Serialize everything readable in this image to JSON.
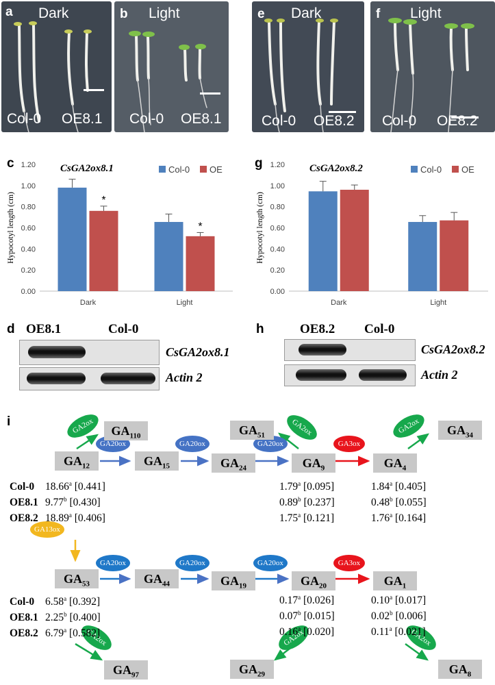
{
  "photos": [
    {
      "letter": "a",
      "condition": "Dark",
      "left": "Col-0",
      "right": "OE8.1"
    },
    {
      "letter": "b",
      "condition": "Light",
      "left": "Col-0",
      "right": "OE8.1"
    },
    {
      "letter": "e",
      "condition": "Dark",
      "left": "Col-0",
      "right": "OE8.2"
    },
    {
      "letter": "f",
      "condition": "Light",
      "left": "Col-0",
      "right": "OE8.2"
    }
  ],
  "chart_data": [
    {
      "type": "bar",
      "panel": "c",
      "title": "CsGA2ox8.1",
      "ylabel": "Hypocotyl length (cm)",
      "ylim": [
        0,
        1.2
      ],
      "yticks": [
        "0.00",
        "0.20",
        "0.40",
        "0.60",
        "0.80",
        "1.00",
        "1.20"
      ],
      "categories": [
        "Dark",
        "Light"
      ],
      "series": [
        {
          "name": "Col-0",
          "color": "#4f81bd",
          "values": [
            0.98,
            0.655
          ],
          "errors": [
            0.08,
            0.075
          ]
        },
        {
          "name": "OE",
          "color": "#c0504d",
          "values": [
            0.76,
            0.52
          ],
          "errors": [
            0.045,
            0.035
          ]
        }
      ],
      "annotations": [
        "*",
        "*"
      ]
    },
    {
      "type": "bar",
      "panel": "g",
      "title": "CsGA2ox8.2",
      "ylabel": "Hypocotyl length (cm)",
      "ylim": [
        0,
        1.2
      ],
      "yticks": [
        "0.00",
        "0.20",
        "0.40",
        "0.60",
        "0.80",
        "1.00",
        "1.20"
      ],
      "categories": [
        "Dark",
        "Light"
      ],
      "series": [
        {
          "name": "Col-0",
          "color": "#4f81bd",
          "values": [
            0.945,
            0.655
          ],
          "errors": [
            0.095,
            0.06
          ]
        },
        {
          "name": "OE",
          "color": "#c0504d",
          "values": [
            0.96,
            0.67
          ],
          "errors": [
            0.045,
            0.075
          ]
        }
      ]
    }
  ],
  "gels": [
    {
      "letter": "d",
      "lanes": [
        "OE8.1",
        "Col-0"
      ],
      "genes": [
        "CsGA2ox8.1",
        "Actin 2"
      ]
    },
    {
      "letter": "h",
      "lanes": [
        "OE8.2",
        "Col-0"
      ],
      "genes": [
        "CsGA2ox8.2",
        "Actin 2"
      ]
    }
  ],
  "pathway": {
    "letter": "i",
    "enzymes": {
      "ga2ox": "GA2ox",
      "ga20ox": "GA20ox",
      "ga3ox": "GA3ox",
      "ga13ox": "GA13ox"
    },
    "enzyme_colors": {
      "ga2ox": "#17a84c",
      "ga20ox": "#4472c4",
      "ga3ox": "#e8141c",
      "ga13ox": "#f2b71f"
    },
    "nodes": {
      "ga12": {
        "base": "GA",
        "sub": "12"
      },
      "ga15": {
        "base": "GA",
        "sub": "15"
      },
      "ga24": {
        "base": "GA",
        "sub": "24"
      },
      "ga9": {
        "base": "GA",
        "sub": "9"
      },
      "ga4": {
        "base": "GA",
        "sub": "4"
      },
      "ga110": {
        "base": "GA",
        "sub": "110"
      },
      "ga51": {
        "base": "GA",
        "sub": "51"
      },
      "ga34": {
        "base": "GA",
        "sub": "34"
      },
      "ga53": {
        "base": "GA",
        "sub": "53"
      },
      "ga44": {
        "base": "GA",
        "sub": "44"
      },
      "ga19": {
        "base": "GA",
        "sub": "19"
      },
      "ga20": {
        "base": "GA",
        "sub": "20"
      },
      "ga1": {
        "base": "GA",
        "sub": "1"
      },
      "ga97": {
        "base": "GA",
        "sub": "97"
      },
      "ga29": {
        "base": "GA",
        "sub": "29"
      },
      "ga8": {
        "base": "GA",
        "sub": "8"
      }
    },
    "genotypes": [
      "Col-0",
      "OE8.1",
      "OE8.2"
    ],
    "values": {
      "ga12": [
        {
          "v": "18.66",
          "s": "a",
          "e": "[0.441]"
        },
        {
          "v": "9.77",
          "s": "b",
          "e": "[0.430]"
        },
        {
          "v": "18.89",
          "s": "a",
          "e": "[0.406]"
        }
      ],
      "ga9": [
        {
          "v": "1.79",
          "s": "a",
          "e": "[0.095]"
        },
        {
          "v": "0.89",
          "s": "b",
          "e": "[0.237]"
        },
        {
          "v": "1.75",
          "s": "a",
          "e": "[0.121]"
        }
      ],
      "ga4": [
        {
          "v": "1.84",
          "s": "a",
          "e": "[0.405]"
        },
        {
          "v": "0.48",
          "s": "b",
          "e": "[0.055]"
        },
        {
          "v": "1.76",
          "s": "a",
          "e": "[0.164]"
        }
      ],
      "ga53": [
        {
          "v": "6.58",
          "s": "a",
          "e": "[0.392]"
        },
        {
          "v": "2.25",
          "s": "b",
          "e": "[0.400]"
        },
        {
          "v": "6.79",
          "s": "a",
          "e": "[0.582]"
        }
      ],
      "ga20": [
        {
          "v": "0.17",
          "s": "a",
          "e": "[0.026]"
        },
        {
          "v": "0.07",
          "s": "b",
          "e": "[0.015]"
        },
        {
          "v": "0.16",
          "s": "a",
          "e": "[0.020]"
        }
      ],
      "ga1": [
        {
          "v": "0.10",
          "s": "a",
          "e": "[0.017]"
        },
        {
          "v": "0.02",
          "s": "b",
          "e": "[0.006]"
        },
        {
          "v": "0.11",
          "s": "a",
          "e": "[0.021]"
        }
      ]
    }
  }
}
